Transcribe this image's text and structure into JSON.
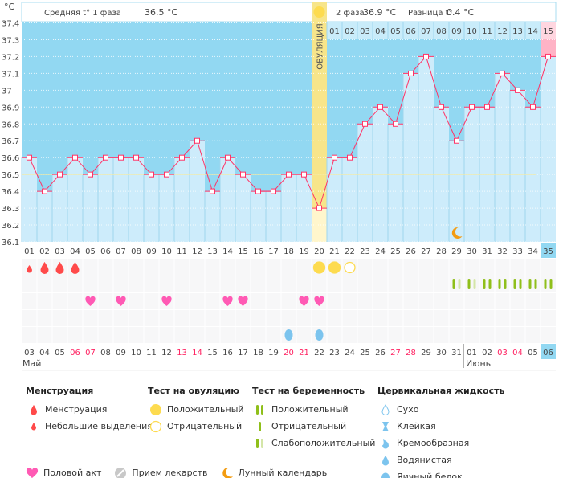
{
  "chart_data": {
    "type": "line",
    "unit_label": "°C",
    "phase1_label": "Средняя t° 1 фаза",
    "phase1_avg": "36.5 °C",
    "phase2_label": "2 фаза",
    "phase2_avg": "36.9 °C",
    "diff_label": "Разница t°",
    "diff_value": "0.4 °C",
    "ovulation_label": "ОВУЛЯЦИЯ",
    "ovulation_day": 20,
    "coverline": 36.5,
    "ylim": [
      36.1,
      37.4
    ],
    "yticks": [
      "36.1",
      "36.2",
      "36.3",
      "36.4",
      "36.5",
      "36.6",
      "36.7",
      "36.8",
      "36.9",
      "37",
      "37.1",
      "37.2",
      "37.3",
      "37.4"
    ],
    "cycle_days": [
      "01",
      "02",
      "03",
      "04",
      "05",
      "06",
      "07",
      "08",
      "09",
      "10",
      "11",
      "12",
      "13",
      "14",
      "15",
      "16",
      "17",
      "18",
      "19",
      "20",
      "21",
      "22",
      "23",
      "24",
      "25",
      "26",
      "27",
      "28",
      "29",
      "30",
      "31",
      "32",
      "33",
      "34",
      "35"
    ],
    "luteal_days": [
      "01",
      "02",
      "03",
      "04",
      "05",
      "06",
      "07",
      "08",
      "09",
      "10",
      "11",
      "12",
      "13",
      "14",
      "15"
    ],
    "temperatures": [
      36.6,
      36.4,
      36.5,
      36.6,
      36.5,
      36.6,
      36.6,
      36.6,
      36.5,
      36.5,
      36.6,
      36.7,
      36.4,
      36.6,
      36.5,
      36.4,
      36.4,
      36.5,
      36.5,
      36.3,
      36.6,
      36.6,
      36.8,
      36.9,
      36.8,
      37.1,
      37.2,
      36.9,
      36.7,
      36.9,
      36.9,
      37.1,
      37.0,
      36.9,
      37.2
    ],
    "moon_day": 29,
    "dates": [
      "03",
      "04",
      "05",
      "06",
      "07",
      "08",
      "09",
      "10",
      "11",
      "12",
      "13",
      "14",
      "15",
      "16",
      "17",
      "18",
      "19",
      "20",
      "21",
      "22",
      "23",
      "24",
      "25",
      "26",
      "27",
      "28",
      "29",
      "30",
      "31",
      "01",
      "02",
      "03",
      "04",
      "05",
      "06"
    ],
    "weekend_dates_idx": [
      3,
      4,
      10,
      11,
      17,
      18,
      24,
      25,
      31,
      32
    ],
    "months": [
      "Май",
      "Июнь"
    ],
    "menstruation": {
      "1": "light",
      "2": "heavy",
      "3": "heavy",
      "4": "heavy"
    },
    "ovulation_tests": {
      "20": "positive",
      "21": "positive",
      "22": "negative"
    },
    "pregnancy_tests": {
      "29": "weak",
      "30": "weak",
      "31": "positive",
      "32": "positive",
      "33": "positive",
      "34": "positive",
      "35": "positive"
    },
    "intercourse_days": [
      5,
      7,
      10,
      14,
      15,
      19,
      20
    ],
    "cervical_fluid": {
      "18": "egg-white",
      "20": "egg-white"
    }
  },
  "colors": {
    "dark_blue": "#92d8f2",
    "light_blue": "#cdecfb",
    "line": "#ff3366",
    "ovulation": "#f7e58a",
    "pink": "#ffb3c6",
    "green": "#8fbf1a",
    "drop": "#ff4a4a",
    "heart": "#ff5ab4",
    "fluid": "#7cc4ee",
    "yellow": "#fddb4f",
    "moon": "#f39c12"
  },
  "legend": {
    "menstruation": {
      "title": "Менструация",
      "items": [
        "Менструация",
        "Небольшие выделения"
      ]
    },
    "ovulation_test": {
      "title": "Тест на овуляцию",
      "items": [
        "Положительный",
        "Отрицательный"
      ]
    },
    "pregnancy_test": {
      "title": "Тест на беременность",
      "items": [
        "Положительный",
        "Отрицательный",
        "Слабоположительный"
      ]
    },
    "cervical": {
      "title": "Цервикальная жидкость",
      "items": [
        "Сухо",
        "Клейкая",
        "Кремообразная",
        "Водянистая",
        "Яичный белок"
      ]
    },
    "other": [
      "Половой акт",
      "Прием лекарств",
      "Лунный календарь"
    ]
  }
}
